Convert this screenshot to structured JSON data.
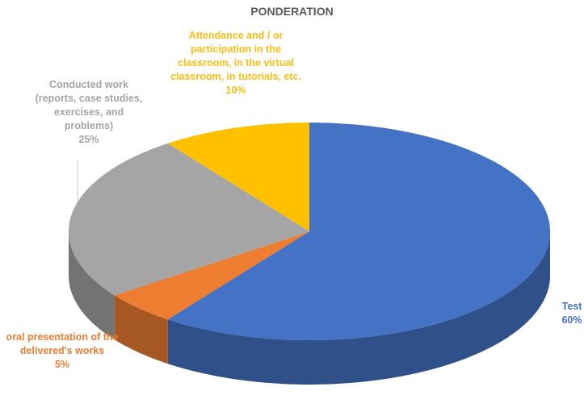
{
  "chart_data": {
    "type": "pie",
    "title": "PONDERATION",
    "categories": [
      "Test",
      "oral presentation of the delivered's works",
      "Conducted work (reports, case studies, exercises, and problems)",
      "Attendance and / or participation in the classroom, in the virtual classroom, in tutorials, etc."
    ],
    "values": [
      60,
      5,
      25,
      10
    ],
    "value_labels": [
      "60%",
      "5%",
      "25%",
      "10%"
    ],
    "colors": [
      "#4472c4",
      "#ed7d31",
      "#a5a5a5",
      "#ffc000"
    ]
  }
}
